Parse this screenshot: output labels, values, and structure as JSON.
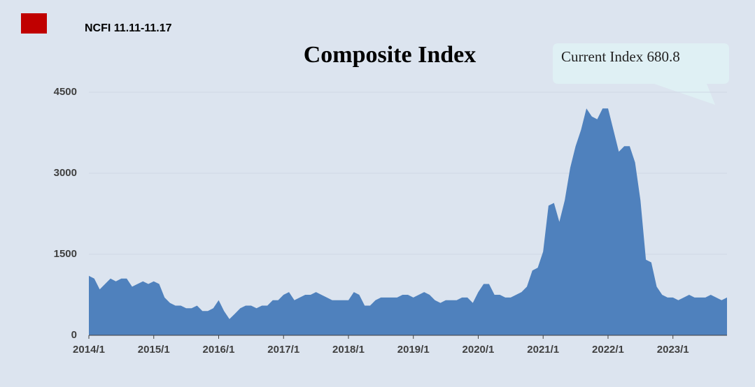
{
  "header": "NCFI 11.11-11.17",
  "chart_data": {
    "type": "area",
    "title": "Composite Index",
    "annotation": "Current Index 680.8",
    "color": "#4f81bd",
    "grid": true,
    "x": [
      "2014/1",
      "2014/2",
      "2014/3",
      "2014/4",
      "2014/5",
      "2014/6",
      "2014/7",
      "2014/8",
      "2014/9",
      "2014/10",
      "2014/11",
      "2014/12",
      "2015/1",
      "2015/2",
      "2015/3",
      "2015/4",
      "2015/5",
      "2015/6",
      "2015/7",
      "2015/8",
      "2015/9",
      "2015/10",
      "2015/11",
      "2015/12",
      "2016/1",
      "2016/2",
      "2016/3",
      "2016/4",
      "2016/5",
      "2016/6",
      "2016/7",
      "2016/8",
      "2016/9",
      "2016/10",
      "2016/11",
      "2016/12",
      "2017/1",
      "2017/2",
      "2017/3",
      "2017/4",
      "2017/5",
      "2017/6",
      "2017/7",
      "2017/8",
      "2017/9",
      "2017/10",
      "2017/11",
      "2017/12",
      "2018/1",
      "2018/2",
      "2018/3",
      "2018/4",
      "2018/5",
      "2018/6",
      "2018/7",
      "2018/8",
      "2018/9",
      "2018/10",
      "2018/11",
      "2018/12",
      "2019/1",
      "2019/2",
      "2019/3",
      "2019/4",
      "2019/5",
      "2019/6",
      "2019/7",
      "2019/8",
      "2019/9",
      "2019/10",
      "2019/11",
      "2019/12",
      "2020/1",
      "2020/2",
      "2020/3",
      "2020/4",
      "2020/5",
      "2020/6",
      "2020/7",
      "2020/8",
      "2020/9",
      "2020/10",
      "2020/11",
      "2020/12",
      "2021/1",
      "2021/2",
      "2021/3",
      "2021/4",
      "2021/5",
      "2021/6",
      "2021/7",
      "2021/8",
      "2021/9",
      "2021/10",
      "2021/11",
      "2021/12",
      "2022/1",
      "2022/2",
      "2022/3",
      "2022/4",
      "2022/5",
      "2022/6",
      "2022/7",
      "2022/8",
      "2022/9",
      "2022/10",
      "2022/11",
      "2022/12",
      "2023/1",
      "2023/2",
      "2023/3",
      "2023/4",
      "2023/5",
      "2023/6",
      "2023/7",
      "2023/8",
      "2023/9",
      "2023/10",
      "2023/11"
    ],
    "values": [
      1100,
      1050,
      850,
      950,
      1050,
      1000,
      1050,
      1050,
      900,
      950,
      1000,
      950,
      1000,
      950,
      700,
      600,
      550,
      550,
      500,
      500,
      550,
      450,
      450,
      500,
      650,
      450,
      300,
      400,
      500,
      550,
      550,
      500,
      550,
      550,
      650,
      650,
      750,
      800,
      650,
      700,
      750,
      750,
      800,
      750,
      700,
      650,
      650,
      650,
      650,
      800,
      750,
      550,
      550,
      650,
      700,
      700,
      700,
      700,
      750,
      750,
      700,
      750,
      800,
      750,
      650,
      600,
      650,
      650,
      650,
      700,
      700,
      600,
      800,
      950,
      950,
      750,
      750,
      700,
      700,
      750,
      800,
      900,
      1200,
      1250,
      1550,
      2400,
      2450,
      2100,
      2500,
      3100,
      3500,
      3800,
      4200,
      4050,
      4000,
      4200,
      4200,
      3800,
      3400,
      3500,
      3500,
      3200,
      2500,
      1400,
      1350,
      900,
      750,
      700,
      700,
      650,
      700,
      750,
      700,
      700,
      700,
      750,
      700,
      650,
      700
    ],
    "xticks": [
      "2014/1",
      "2015/1",
      "2016/1",
      "2017/1",
      "2018/1",
      "2019/1",
      "2020/1",
      "2021/1",
      "2022/1",
      "2023/1"
    ],
    "ylim": [
      0,
      4500
    ],
    "yticks": [
      0,
      1500,
      3000,
      4500
    ]
  }
}
